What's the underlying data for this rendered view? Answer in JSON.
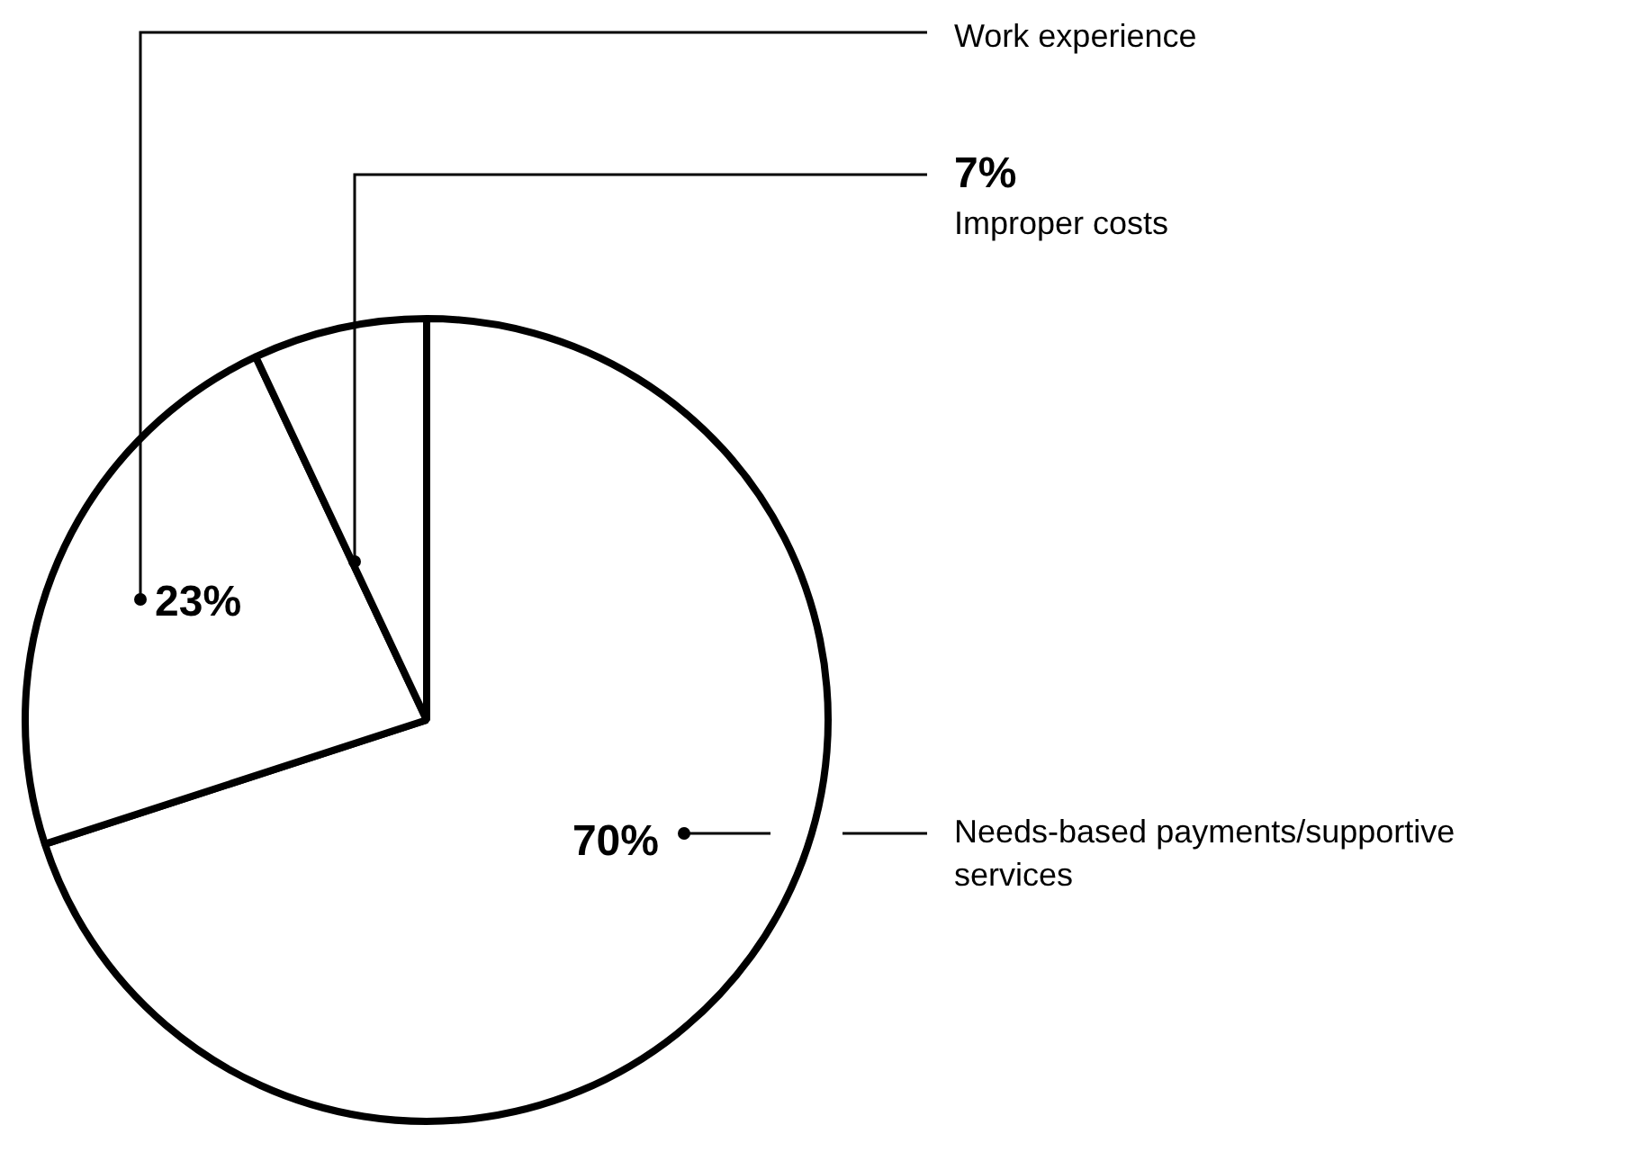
{
  "chart_data": {
    "type": "pie",
    "categories": [
      "Needs-based payments/supportive services",
      "Work experience",
      "Improper costs"
    ],
    "values": [
      70,
      23,
      7
    ],
    "colors": [
      "#ffffff",
      "#ffffff",
      "#ffffff"
    ],
    "value_labels": [
      "70%",
      "23%",
      "7%"
    ],
    "legend": false
  }
}
